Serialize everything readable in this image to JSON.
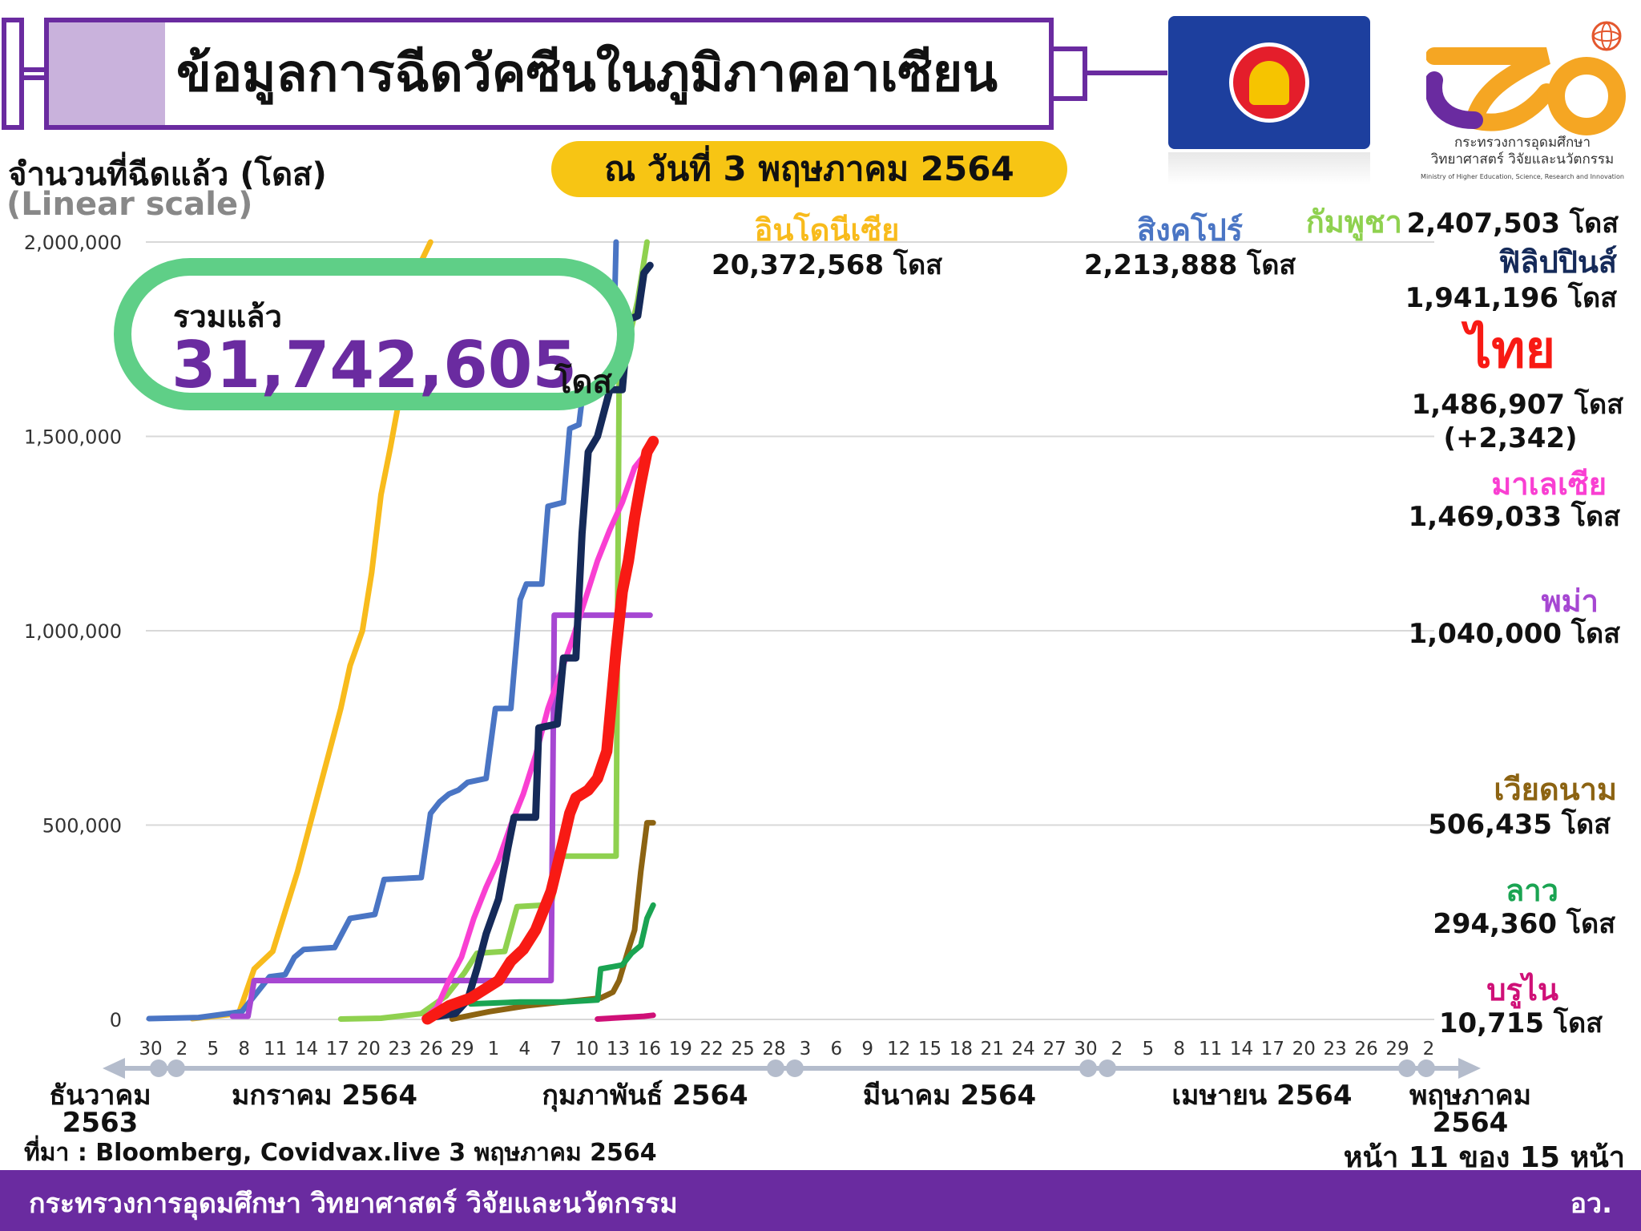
{
  "header": {
    "title": "ข้อมูลการฉีดวัคซีนในภูมิภาคอาเซียน",
    "date_badge": "ณ วันที่ 3 พฤษภาคม 2564"
  },
  "logo": {
    "ministry_th_line1": "กระทรวงการอุดมศึกษา",
    "ministry_th_line2": "วิทยาศาสตร์ วิจัยและนวัตกรรม",
    "ministry_en": "Ministry of Higher Education, Science, Research and Innovation"
  },
  "total": {
    "label": "รวมแล้ว",
    "value": "31,742,605",
    "unit": "โดส"
  },
  "footer": {
    "source": "ที่มา : Bloomberg, Covidvax.live 3 พฤษภาคม 2564",
    "page": "หน้า 11 ของ 15 หน้า",
    "ministry": "กระทรวงการอุดมศึกษา วิทยาศาสตร์ วิจัยและนวัตกรรม",
    "abbr": "อว."
  },
  "colors": {
    "purple": "#6a2ba0",
    "green_box": "#5fcf87",
    "badge": "#f7c514"
  },
  "chart_data": {
    "type": "line",
    "ylabel": "จำนวนที่ฉีดแล้ว (โดส)",
    "yscale_label": "(Linear scale)",
    "ylim": [
      0,
      2000000
    ],
    "yticks": [
      "0",
      "500,000",
      "1,000,000",
      "1,500,000",
      "2,000,000"
    ],
    "ytick_values": [
      0,
      500000,
      1000000,
      1500000,
      2000000
    ],
    "x_tick_labels": [
      "30",
      "2",
      "5",
      "8",
      "11",
      "14",
      "17",
      "20",
      "23",
      "26",
      "29",
      "1",
      "4",
      "7",
      "10",
      "13",
      "16",
      "19",
      "22",
      "25",
      "28",
      "3",
      "6",
      "9",
      "12",
      "15",
      "18",
      "21",
      "24",
      "27",
      "30",
      "2",
      "5",
      "8",
      "11",
      "14",
      "17",
      "20",
      "23",
      "26",
      "29",
      "2"
    ],
    "months": [
      {
        "name": "ธันวาคม",
        "year": "2563"
      },
      {
        "name": "มกราคม 2564",
        "year": ""
      },
      {
        "name": "กุมภาพันธ์ 2564",
        "year": ""
      },
      {
        "name": "มีนาคม 2564",
        "year": ""
      },
      {
        "name": "เมษายน 2564",
        "year": ""
      },
      {
        "name": "พฤษภาคม",
        "year": "2564"
      }
    ],
    "series": [
      {
        "name": "อินโดนีเซีย",
        "label": "20,372,568 โดส",
        "color": "#f8bb1c",
        "width": 7,
        "points": [
          [
            14,
            2000
          ],
          [
            29,
            15000
          ],
          [
            34,
            130000
          ],
          [
            40,
            175000
          ],
          [
            48,
            380000
          ],
          [
            52,
            500000
          ],
          [
            58,
            680000
          ],
          [
            62,
            800000
          ],
          [
            65,
            910000
          ],
          [
            69,
            1000000
          ],
          [
            72,
            1150000
          ],
          [
            75,
            1350000
          ],
          [
            78,
            1470000
          ],
          [
            81,
            1600000
          ],
          [
            83,
            1730000
          ],
          [
            86,
            1800000
          ],
          [
            88,
            1950000
          ],
          [
            91,
            2000000
          ]
        ]
      },
      {
        "name": "สิงคโปร์",
        "label": "2,213,888 โดส",
        "color": "#4a75c4",
        "width": 7,
        "points": [
          [
            0,
            2000
          ],
          [
            16,
            5000
          ],
          [
            30,
            20000
          ],
          [
            34,
            60000
          ],
          [
            39,
            110000
          ],
          [
            44,
            115000
          ],
          [
            47,
            160000
          ],
          [
            50,
            180000
          ],
          [
            60,
            185000
          ],
          [
            65,
            260000
          ],
          [
            73,
            270000
          ],
          [
            76,
            360000
          ],
          [
            88,
            365000
          ],
          [
            91,
            530000
          ],
          [
            94,
            560000
          ],
          [
            97,
            580000
          ],
          [
            100,
            590000
          ],
          [
            103,
            610000
          ],
          [
            109,
            620000
          ],
          [
            112,
            800000
          ],
          [
            117,
            800000
          ],
          [
            120,
            1080000
          ],
          [
            122,
            1120000
          ],
          [
            127,
            1120000
          ],
          [
            129,
            1320000
          ],
          [
            134,
            1330000
          ],
          [
            136,
            1520000
          ],
          [
            139,
            1530000
          ],
          [
            141,
            1660000
          ],
          [
            150,
            1670000
          ],
          [
            151,
            2000000
          ]
        ]
      },
      {
        "name": "กัมพูชา",
        "label": "2,407,503 โดส",
        "color": "#8fd14f",
        "width": 7,
        "points": [
          [
            62,
            1000
          ],
          [
            75,
            3000
          ],
          [
            88,
            15000
          ],
          [
            96,
            60000
          ],
          [
            102,
            120000
          ],
          [
            106,
            170000
          ],
          [
            115,
            175000
          ],
          [
            119,
            290000
          ],
          [
            130,
            295000
          ],
          [
            133,
            420000
          ],
          [
            151,
            420000
          ],
          [
            152,
            1650000
          ],
          [
            154,
            1700000
          ],
          [
            156,
            1780000
          ],
          [
            158,
            1850000
          ],
          [
            161,
            2000000
          ]
        ]
      },
      {
        "name": "ฟิลิปปินส์",
        "label": "1,941,196 โดส",
        "color": "#152a59",
        "width": 9,
        "points": [
          [
            91,
            5000
          ],
          [
            99,
            15000
          ],
          [
            103,
            50000
          ],
          [
            106,
            130000
          ],
          [
            109,
            220000
          ],
          [
            113,
            310000
          ],
          [
            116,
            440000
          ],
          [
            118,
            520000
          ],
          [
            125,
            520000
          ],
          [
            126,
            750000
          ],
          [
            132,
            760000
          ],
          [
            134,
            930000
          ],
          [
            138,
            930000
          ],
          [
            140,
            1250000
          ],
          [
            142,
            1460000
          ],
          [
            145,
            1500000
          ],
          [
            147,
            1560000
          ],
          [
            149,
            1620000
          ],
          [
            153,
            1620000
          ],
          [
            155,
            1800000
          ],
          [
            158,
            1810000
          ],
          [
            160,
            1920000
          ],
          [
            162,
            1940000
          ]
        ]
      },
      {
        "name": "มาเลเซีย",
        "label": "1,469,033 โดส",
        "color": "#f93fd2",
        "width": 7,
        "points": [
          [
            89,
            3000
          ],
          [
            93,
            30000
          ],
          [
            97,
            100000
          ],
          [
            101,
            160000
          ],
          [
            105,
            260000
          ],
          [
            109,
            340000
          ],
          [
            113,
            410000
          ],
          [
            117,
            500000
          ],
          [
            121,
            580000
          ],
          [
            125,
            680000
          ],
          [
            129,
            800000
          ],
          [
            133,
            890000
          ],
          [
            137,
            980000
          ],
          [
            141,
            1080000
          ],
          [
            145,
            1180000
          ],
          [
            149,
            1260000
          ],
          [
            153,
            1330000
          ],
          [
            157,
            1420000
          ],
          [
            160,
            1450000
          ],
          [
            162,
            1469000
          ]
        ]
      },
      {
        "name": "ไทย",
        "label": "1,486,907 โดส",
        "delta": "(+2,342)",
        "color": "#f81a14",
        "width": 14,
        "points": [
          [
            90,
            1000
          ],
          [
            97,
            35000
          ],
          [
            104,
            55000
          ],
          [
            109,
            80000
          ],
          [
            113,
            100000
          ],
          [
            117,
            150000
          ],
          [
            121,
            180000
          ],
          [
            125,
            230000
          ],
          [
            130,
            330000
          ],
          [
            134,
            460000
          ],
          [
            136,
            530000
          ],
          [
            138,
            570000
          ],
          [
            142,
            590000
          ],
          [
            145,
            620000
          ],
          [
            148,
            690000
          ],
          [
            151,
            950000
          ],
          [
            153,
            1100000
          ],
          [
            155,
            1180000
          ],
          [
            157,
            1290000
          ],
          [
            159,
            1380000
          ],
          [
            161,
            1460000
          ],
          [
            163,
            1487000
          ]
        ]
      },
      {
        "name": "พม่า",
        "label": "1,040,000 โดส",
        "color": "#a647d2",
        "width": 7,
        "points": [
          [
            27,
            8000
          ],
          [
            32,
            8000
          ],
          [
            34,
            100000
          ],
          [
            130,
            100000
          ],
          [
            131,
            1040000
          ],
          [
            162,
            1040000
          ]
        ]
      },
      {
        "name": "เวียดนาม",
        "label": "506,435 โดส",
        "color": "#8c6312",
        "width": 7,
        "points": [
          [
            98,
            1000
          ],
          [
            110,
            20000
          ],
          [
            122,
            35000
          ],
          [
            134,
            45000
          ],
          [
            146,
            55000
          ],
          [
            150,
            70000
          ],
          [
            152,
            100000
          ],
          [
            155,
            180000
          ],
          [
            157,
            230000
          ],
          [
            159,
            380000
          ],
          [
            161,
            506000
          ],
          [
            163,
            506000
          ]
        ]
      },
      {
        "name": "ลาว",
        "label": "294,360 โดส",
        "color": "#1aa452",
        "width": 7,
        "points": [
          [
            104,
            40000
          ],
          [
            120,
            45000
          ],
          [
            134,
            45000
          ],
          [
            145,
            50000
          ],
          [
            146,
            130000
          ],
          [
            153,
            140000
          ],
          [
            156,
            170000
          ],
          [
            159,
            190000
          ],
          [
            161,
            260000
          ],
          [
            163,
            294000
          ]
        ]
      },
      {
        "name": "บรูไน",
        "label": "10,715 โดส",
        "color": "#cf1077",
        "width": 7,
        "points": [
          [
            145,
            1000
          ],
          [
            160,
            8000
          ],
          [
            163,
            10715
          ]
        ]
      }
    ]
  }
}
